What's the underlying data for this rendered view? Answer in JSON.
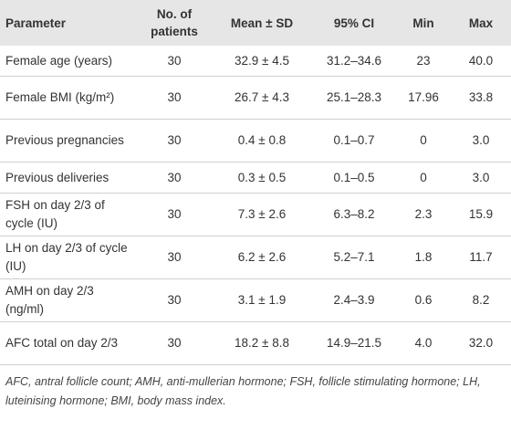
{
  "table": {
    "header": [
      "Parameter",
      "No. of patients",
      "Mean ± SD",
      "95% CI",
      "Min",
      "Max"
    ],
    "rows": [
      [
        "Female age (years)",
        "30",
        "32.9 ± 4.5",
        "31.2–34.6",
        "23",
        "40.0"
      ],
      [
        "Female BMI (kg/m²)",
        "30",
        "26.7 ± 4.3",
        "25.1–28.3",
        "17.96",
        "33.8"
      ],
      [
        "Previous pregnancies",
        "30",
        "0.4 ± 0.8",
        "0.1–0.7",
        "0",
        "3.0"
      ],
      [
        "Previous deliveries",
        "30",
        "0.3 ± 0.5",
        "0.1–0.5",
        "0",
        "3.0"
      ],
      [
        "FSH on day 2/3 of cycle (IU)",
        "30",
        "7.3 ± 2.6",
        "6.3–8.2",
        "2.3",
        "15.9"
      ],
      [
        "LH on day 2/3 of cycle (IU)",
        "30",
        "6.2 ± 2.6",
        "5.2–7.1",
        "1.8",
        "11.7"
      ],
      [
        "AMH on day 2/3 (ng/ml)",
        "30",
        "3.1 ± 1.9",
        "2.4–3.9",
        "0.6",
        "8.2"
      ],
      [
        "AFC total on day 2/3",
        "30",
        "18.2 ± 8.8",
        "14.9–21.5",
        "4.0",
        "32.0"
      ]
    ],
    "footnote": "AFC, antral follicle count; AMH, anti-mullerian hormone; FSH, follicle stimulating hormone; LH, luteinising hormone; BMI, body mass index."
  }
}
